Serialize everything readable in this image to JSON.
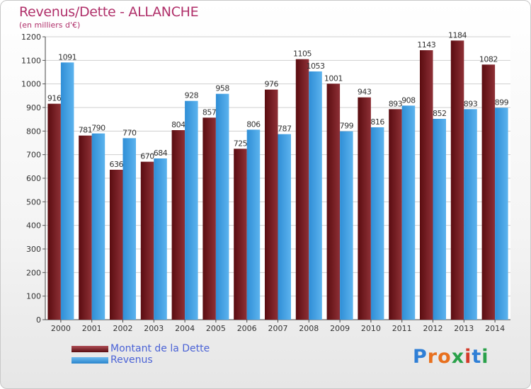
{
  "chart_data": {
    "type": "bar",
    "title": "Revenus/Dette - ALLANCHE",
    "subtitle": "(en milliers d'€)",
    "categories": [
      "2000",
      "2001",
      "2002",
      "2003",
      "2004",
      "2005",
      "2006",
      "2007",
      "2008",
      "2009",
      "2010",
      "2011",
      "2012",
      "2013",
      "2014"
    ],
    "series": [
      {
        "name": "Montant de la Dette",
        "color": "#7a1d22",
        "values": [
          916,
          781,
          636,
          670,
          804,
          857,
          725,
          976,
          1105,
          1001,
          943,
          893,
          1143,
          1184,
          1082
        ]
      },
      {
        "name": "Revenus",
        "color": "#3d9fe5",
        "values": [
          1091,
          790,
          770,
          684,
          928,
          958,
          806,
          787,
          1053,
          799,
          816,
          908,
          852,
          893,
          899
        ]
      }
    ],
    "ylim": [
      0,
      1200
    ],
    "yticks": [
      0,
      100,
      200,
      300,
      400,
      500,
      600,
      700,
      800,
      900,
      1000,
      1100,
      1200
    ],
    "grid": true,
    "legend_position": "bottom-left"
  },
  "logo": {
    "letters": [
      "P",
      "r",
      "o",
      "x",
      "i",
      "t",
      "i"
    ],
    "colors": [
      "#2f7fd6",
      "#e8701e",
      "#e8701e",
      "#2aa14a",
      "#d43b2a",
      "#2f7fd6",
      "#2aa14a"
    ]
  }
}
